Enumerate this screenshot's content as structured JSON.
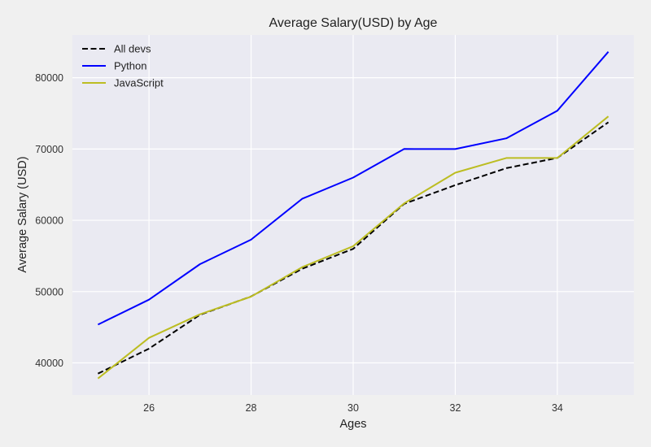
{
  "chart_data": {
    "type": "line",
    "title": "Average Salary(USD) by Age",
    "xlabel": "Ages",
    "ylabel": "Average Salary (USD)",
    "x": [
      25,
      26,
      27,
      28,
      29,
      30,
      31,
      32,
      33,
      34,
      35
    ],
    "xlim": [
      24.5,
      35.5
    ],
    "ylim": [
      35500,
      86000
    ],
    "xticks": [
      26,
      28,
      30,
      32,
      34
    ],
    "yticks": [
      40000,
      50000,
      60000,
      70000,
      80000
    ],
    "grid": true,
    "legend_position": "top-left",
    "series": [
      {
        "name": "All devs",
        "color": "#000000",
        "linestyle": "dashed",
        "values": [
          38496,
          42000,
          46752,
          49320,
          53200,
          56000,
          62316,
          64928,
          67317,
          68748,
          73752
        ]
      },
      {
        "name": "Python",
        "color": "#0000ff",
        "linestyle": "solid",
        "values": [
          45372,
          48876,
          53850,
          57287,
          63016,
          65998,
          70003,
          70000,
          71496,
          75370,
          83640
        ]
      },
      {
        "name": "JavaScript",
        "color": "#bcbd22",
        "linestyle": "solid",
        "values": [
          37810,
          43515,
          46823,
          49293,
          53437,
          56373,
          62375,
          66674,
          68745,
          68746,
          74583
        ]
      }
    ]
  }
}
